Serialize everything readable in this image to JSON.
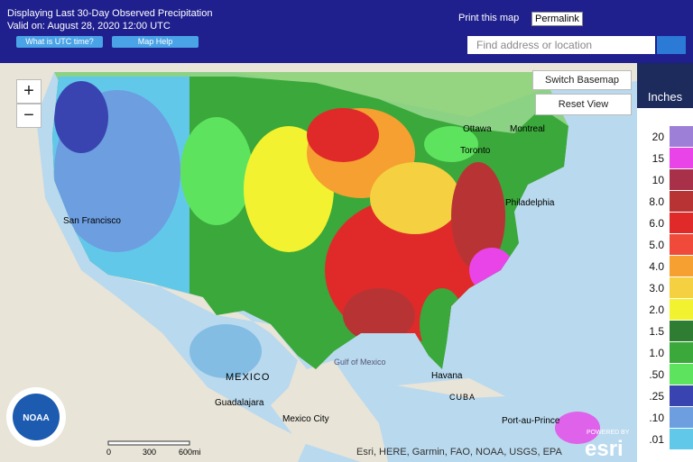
{
  "header": {
    "title": "Displaying Last 30-Day Observed Precipitation",
    "valid": "Valid on: August 28, 2020 12:00 UTC",
    "buttons": [
      "What is UTC time?",
      "Map Help"
    ],
    "print": "Print this map",
    "permalink": "Permalink",
    "search_placeholder": "Find address or location"
  },
  "map": {
    "zoom_in": "+",
    "zoom_out": "−",
    "switch_basemap": "Switch Basemap",
    "reset_view": "Reset View",
    "labels": [
      "Ottawa",
      "Montreal",
      "Toronto",
      "San Francisco",
      "Philadelphia",
      "Gulf of Mexico",
      "MEXICO",
      "Guadalajara",
      "Mexico City",
      "Havana",
      "CUBA",
      "Port-au-Prince"
    ],
    "scale": [
      "0",
      "300",
      "600mi"
    ],
    "attribution": "Esri, HERE, Garmin, FAO, NOAA, USGS, EPA",
    "esri_powered": "POWERED BY",
    "esri": "esri"
  },
  "legend": {
    "title": "Inches",
    "items": [
      {
        "label": "20",
        "color": "#9d7fd8"
      },
      {
        "label": "15",
        "color": "#e844e8"
      },
      {
        "label": "10",
        "color": "#a83048"
      },
      {
        "label": "8.0",
        "color": "#b83434"
      },
      {
        "label": "6.0",
        "color": "#e02a2a"
      },
      {
        "label": "5.0",
        "color": "#f04a3a"
      },
      {
        "label": "4.0",
        "color": "#f5a030"
      },
      {
        "label": "3.0",
        "color": "#f5d040"
      },
      {
        "label": "2.0",
        "color": "#f2f230"
      },
      {
        "label": "1.5",
        "color": "#2e7d32"
      },
      {
        "label": "1.0",
        "color": "#3aa83a"
      },
      {
        "label": ".50",
        "color": "#5ee35e"
      },
      {
        "label": ".25",
        "color": "#3a44b0"
      },
      {
        "label": ".10",
        "color": "#6c9ee0"
      },
      {
        "label": ".01",
        "color": "#62c8ea"
      }
    ]
  }
}
